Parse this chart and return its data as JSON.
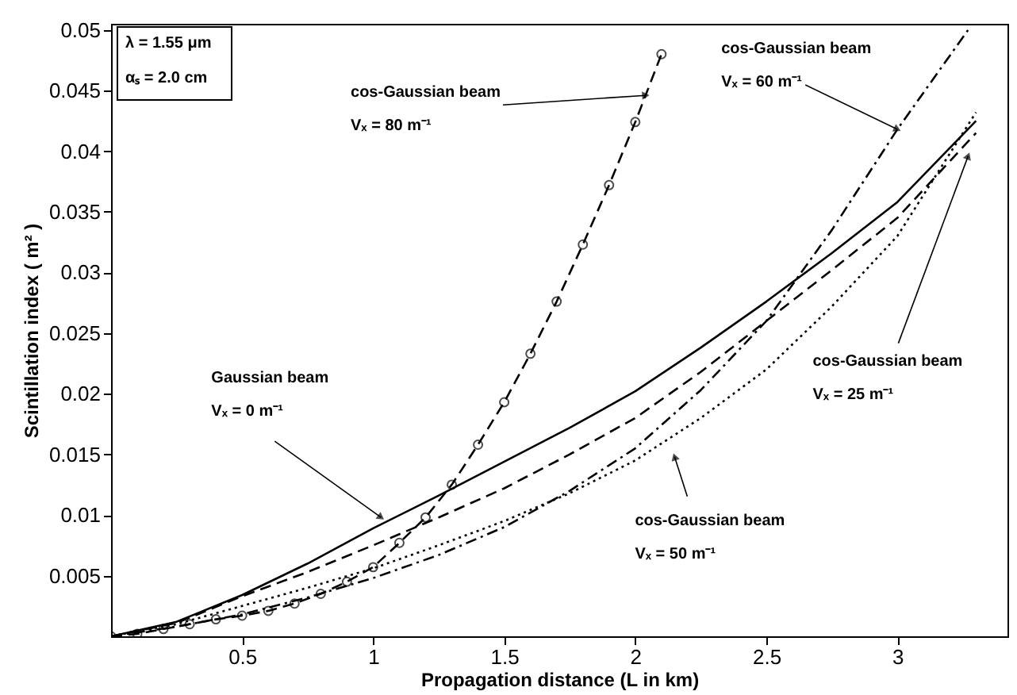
{
  "chart_data": {
    "type": "line",
    "xlabel": "Propagation distance (L in km)",
    "ylabel": "Scintillation index ( m² )",
    "xlim": [
      0,
      3.42
    ],
    "ylim": [
      0,
      0.0505
    ],
    "xticks": [
      0.5,
      1,
      1.5,
      2,
      2.5,
      3
    ],
    "yticks": [
      0.005,
      0.01,
      0.015,
      0.02,
      0.025,
      0.03,
      0.035,
      0.04,
      0.045,
      0.05
    ],
    "grid": false,
    "series": [
      {
        "color": "#000000",
        "line_style": "solid",
        "marker": "none",
        "x": [
          0,
          0.25,
          0.5,
          0.75,
          1,
          1.25,
          1.5,
          1.75,
          2,
          2.25,
          2.5,
          2.75,
          3,
          3.3
        ],
        "values": [
          0,
          0.0012,
          0.0034,
          0.006,
          0.0089,
          0.0116,
          0.0144,
          0.0172,
          0.0202,
          0.0238,
          0.0276,
          0.0316,
          0.0358,
          0.0425
        ]
      },
      {
        "color": "#000000",
        "line_style": "dashed",
        "marker": "none",
        "x": [
          0,
          0.25,
          0.5,
          0.75,
          1,
          1.25,
          1.5,
          1.75,
          2,
          2.25,
          2.5,
          2.75,
          3,
          3.3
        ],
        "values": [
          0,
          0.0011,
          0.0033,
          0.0053,
          0.0075,
          0.0098,
          0.0122,
          0.015,
          0.018,
          0.0218,
          0.026,
          0.0302,
          0.0345,
          0.0415
        ]
      },
      {
        "color": "#000000",
        "line_style": "dotted",
        "marker": "none",
        "x": [
          0,
          0.25,
          0.5,
          0.75,
          1,
          1.25,
          1.5,
          1.75,
          2,
          2.25,
          2.5,
          2.75,
          3,
          3.3
        ],
        "values": [
          0,
          0.001,
          0.0025,
          0.004,
          0.0056,
          0.0075,
          0.0095,
          0.0118,
          0.0145,
          0.018,
          0.022,
          0.0272,
          0.033,
          0.0432
        ]
      },
      {
        "color": "#000000",
        "line_style": "dashdot",
        "marker": "none",
        "x": [
          0,
          0.25,
          0.5,
          0.75,
          1,
          1.25,
          1.5,
          1.75,
          2,
          2.25,
          2.5,
          2.75,
          3,
          3.27
        ],
        "values": [
          0,
          0.0008,
          0.0018,
          0.0032,
          0.0048,
          0.0067,
          0.009,
          0.012,
          0.0155,
          0.0203,
          0.026,
          0.0335,
          0.0418,
          0.05
        ]
      },
      {
        "color": "#000000",
        "line_style": "dashed",
        "marker": "circle",
        "x": [
          0,
          0.1,
          0.2,
          0.3,
          0.4,
          0.5,
          0.6,
          0.7,
          0.8,
          0.9,
          1.0,
          1.1,
          1.2,
          1.3,
          1.4,
          1.5,
          1.6,
          1.7,
          1.8,
          1.9,
          2.0,
          2.1
        ],
        "values": [
          0,
          0.0002,
          0.0006,
          0.001,
          0.0014,
          0.0017,
          0.0021,
          0.0027,
          0.0035,
          0.0045,
          0.0057,
          0.0077,
          0.0098,
          0.0125,
          0.0158,
          0.0193,
          0.0233,
          0.0276,
          0.0323,
          0.0372,
          0.0424,
          0.048
        ]
      }
    ],
    "annotations": [
      "λ = 1.55 μm",
      "αₛ = 2.0 cm",
      {
        "text": "cos-Gaussian beam\nVₓ = 80 m⁻¹",
        "x": 2.04,
        "y": 0.0446
      },
      {
        "text": "cos-Gaussian beam\nVₓ = 60 m⁻¹",
        "x": 3.0,
        "y": 0.0418
      },
      {
        "text": "cos-Gaussian beam\nVₓ = 25 m⁻¹",
        "x": 3.27,
        "y": 0.0396
      },
      {
        "text": "cos-Gaussian beam\nVₓ = 50 m⁻¹",
        "x": 2.15,
        "y": 0.0148
      },
      {
        "text": "Gaussian beam\nVₓ = 0 m⁻¹",
        "x": 1.03,
        "y": 0.0098
      }
    ]
  }
}
